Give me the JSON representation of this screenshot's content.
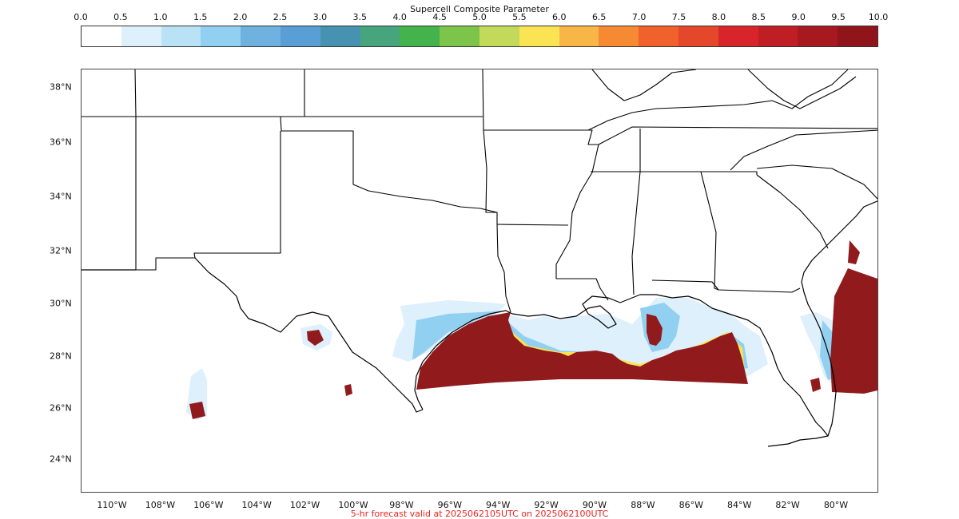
{
  "title": "Supercell Composite Parameter",
  "footer": "5-hr forecast valid at 2025062105UTC on 2025062100UTC",
  "colorbar": {
    "ticks": [
      "0.0",
      "0.5",
      "1.0",
      "1.5",
      "2.0",
      "2.5",
      "3.0",
      "3.5",
      "4.0",
      "4.5",
      "5.0",
      "5.5",
      "6.0",
      "6.5",
      "7.0",
      "7.5",
      "8.0",
      "8.5",
      "9.0",
      "9.5",
      "10.0"
    ],
    "colors": [
      "#ffffff",
      "#ddf0fc",
      "#b9e2f7",
      "#92d0f1",
      "#6fb2e0",
      "#5a9ed6",
      "#4792b1",
      "#47a57d",
      "#44b34c",
      "#7dc44a",
      "#c2d95a",
      "#fbe453",
      "#f8b647",
      "#f68a33",
      "#f1612b",
      "#e4472a",
      "#d8252b",
      "#c01e25",
      "#a8191f",
      "#8f151b"
    ],
    "min": 0.0,
    "max": 10.0
  },
  "map": {
    "lat_labels": [
      "38°N",
      "36°N",
      "34°N",
      "32°N",
      "30°N",
      "28°N",
      "26°N",
      "24°N"
    ],
    "lon_labels": [
      "110°W",
      "108°W",
      "106°W",
      "104°W",
      "102°W",
      "100°W",
      "98°W",
      "96°W",
      "94°W",
      "92°W",
      "90°W",
      "88°W",
      "86°W",
      "84°W",
      "82°W",
      "80°W"
    ],
    "field_max_color": "#911a1d",
    "boundary_color": "#000000"
  }
}
